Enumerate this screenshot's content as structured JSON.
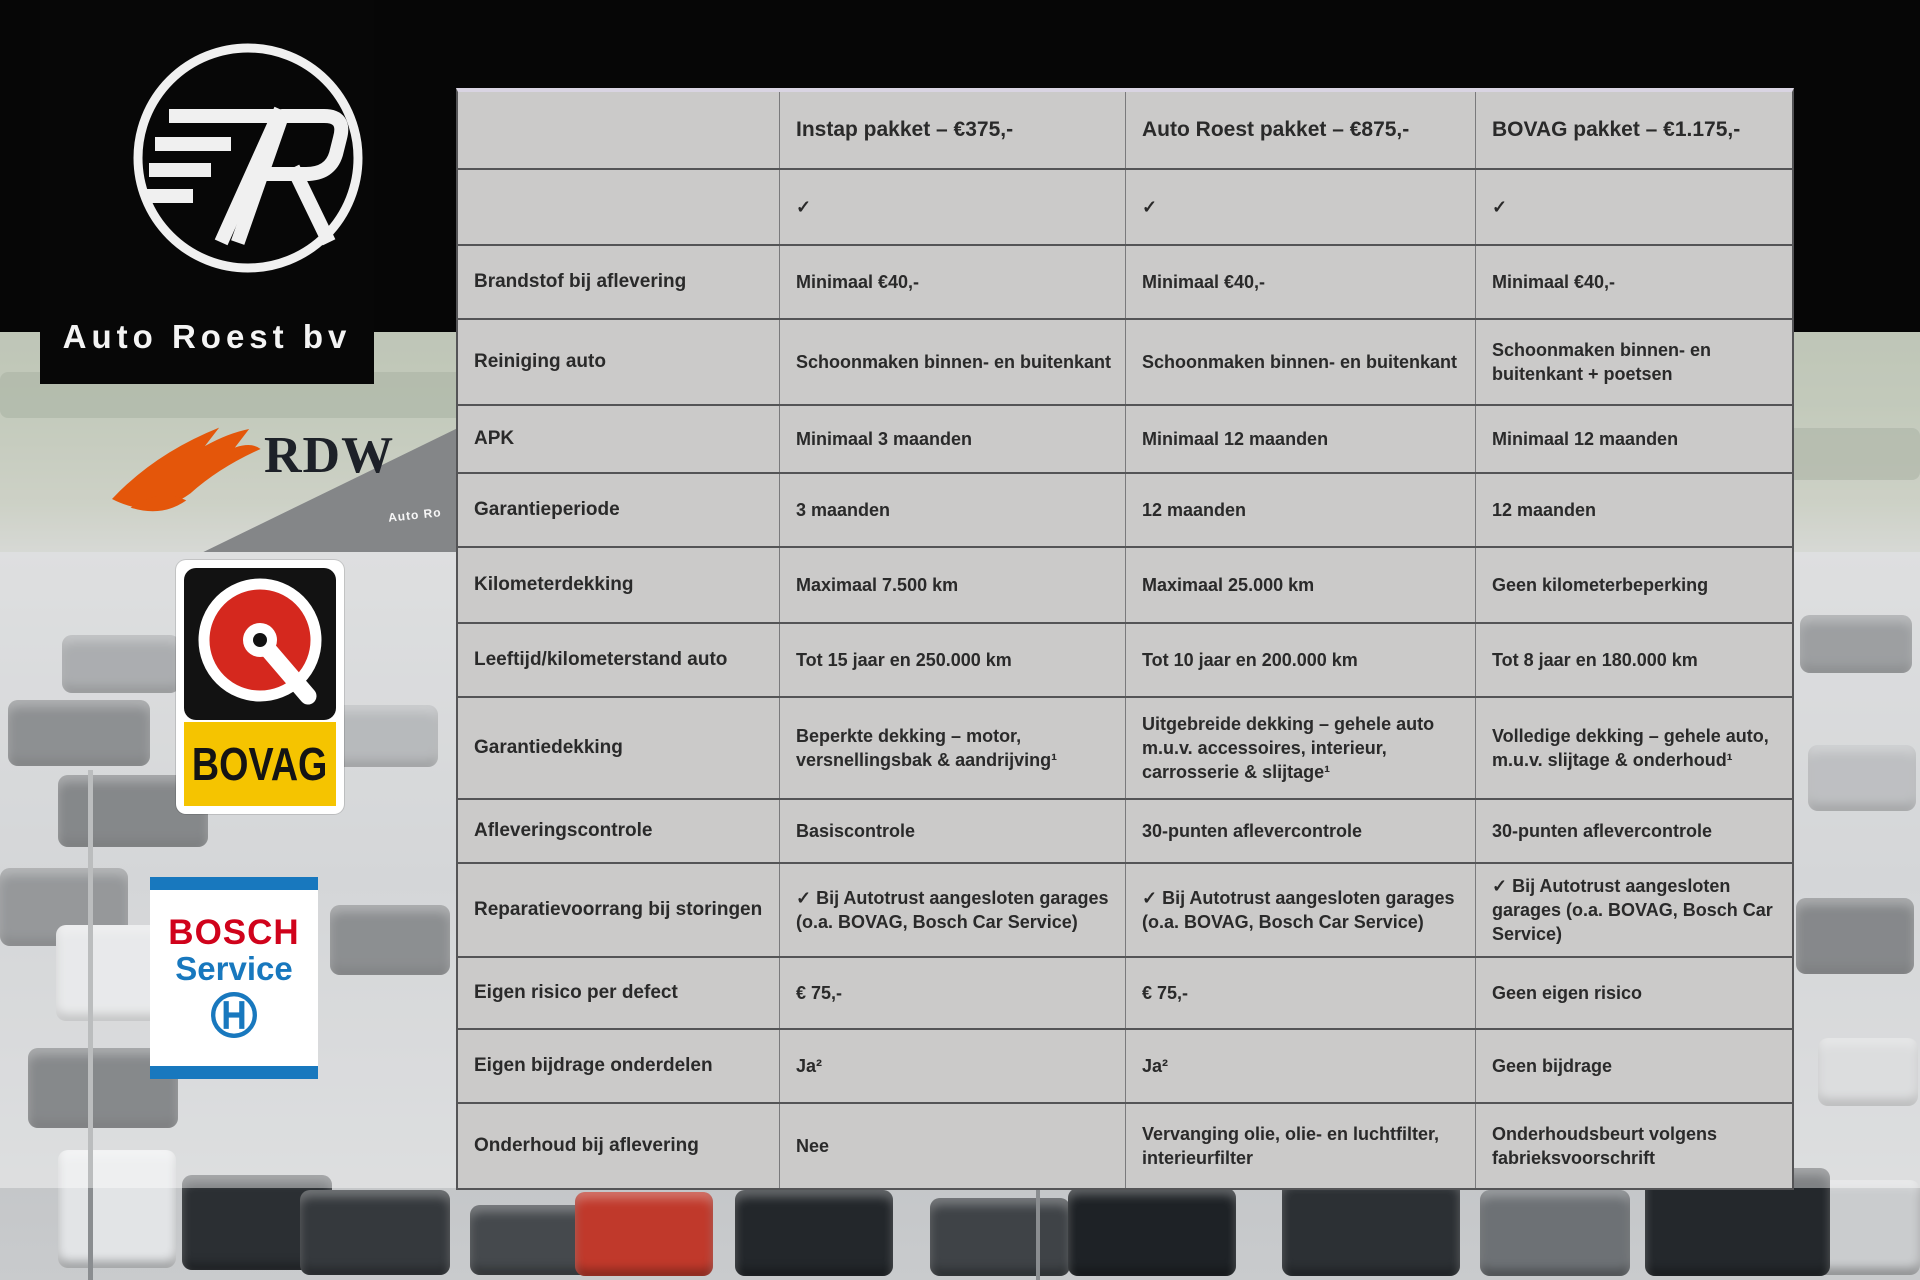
{
  "branding": {
    "company_name": "Auto Roest bv",
    "building_sign": "Auto Ro",
    "rdw": {
      "label": "RDW"
    },
    "bovag": {
      "label": "BOVAG"
    },
    "bosch": {
      "brand": "BOSCH",
      "service": "Service"
    }
  },
  "table": {
    "columns": [
      "",
      "Instap pakket – €375,-",
      "Auto Roest pakket – €875,-",
      "BOVAG pakket – €1.175,-"
    ],
    "rows": [
      {
        "label": "",
        "cells": [
          "✓",
          "✓",
          "✓"
        ]
      },
      {
        "label": "Brandstof bij aflevering",
        "cells": [
          "Minimaal €40,-",
          "Minimaal €40,-",
          "Minimaal €40,-"
        ]
      },
      {
        "label": "Reiniging auto",
        "cells": [
          "Schoonmaken binnen- en buitenkant",
          "Schoonmaken binnen- en buitenkant",
          "Schoonmaken binnen- en buitenkant + poetsen"
        ]
      },
      {
        "label": "APK",
        "cells": [
          "Minimaal 3 maanden",
          "Minimaal 12 maanden",
          "Minimaal 12 maanden"
        ]
      },
      {
        "label": "Garantieperiode",
        "cells": [
          "3 maanden",
          "12 maanden",
          "12 maanden"
        ]
      },
      {
        "label": "Kilometerdekking",
        "cells": [
          "Maximaal 7.500 km",
          "Maximaal 25.000 km",
          "Geen kilometerbeperking"
        ]
      },
      {
        "label": "Leeftijd/kilometerstand auto",
        "cells": [
          "Tot 15 jaar en 250.000 km",
          "Tot 10 jaar en 200.000 km",
          "Tot 8 jaar en 180.000 km"
        ]
      },
      {
        "label": "Garantiedekking",
        "cells": [
          "Beperkte dekking – motor, versnellingsbak & aandrijving¹",
          "Uitgebreide dekking – gehele auto m.u.v. accessoires, interieur, carrosserie & slijtage¹",
          "Volledige dekking – gehele auto, m.u.v. slijtage & onderhoud¹"
        ]
      },
      {
        "label": "Afleveringscontrole",
        "cells": [
          "Basiscontrole",
          "30-punten aflevercontrole",
          "30-punten aflevercontrole"
        ]
      },
      {
        "label": "Reparatievoorrang bij storingen",
        "cells": [
          "✓ Bij Autotrust aangesloten garages (o.a. BOVAG, Bosch Car Service)",
          "✓ Bij Autotrust aangesloten garages (o.a. BOVAG, Bosch Car Service)",
          "✓ Bij Autotrust aangesloten garages (o.a. BOVAG, Bosch Car Service)"
        ]
      },
      {
        "label": "Eigen risico per defect",
        "cells": [
          "€ 75,-",
          "€ 75,-",
          "Geen eigen risico"
        ]
      },
      {
        "label": "Eigen bijdrage onderdelen",
        "cells": [
          "Ja²",
          "Ja²",
          "Geen bijdrage"
        ]
      },
      {
        "label": "Onderhoud bij aflevering",
        "cells": [
          "Nee",
          "Vervanging olie, olie- en luchtfilter, interieurfilter",
          "Onderhoudsbeurt volgens fabrieksvoorschrift"
        ]
      }
    ]
  },
  "colors": {
    "table_background": "#cbcac9",
    "table_border": "#545456",
    "rdw_orange": "#e4560a",
    "bovag_yellow": "#f5c400",
    "bovag_red": "#d5281e",
    "bosch_red": "#d0021b",
    "bosch_blue": "#1878be",
    "logo_background": "#000000"
  }
}
